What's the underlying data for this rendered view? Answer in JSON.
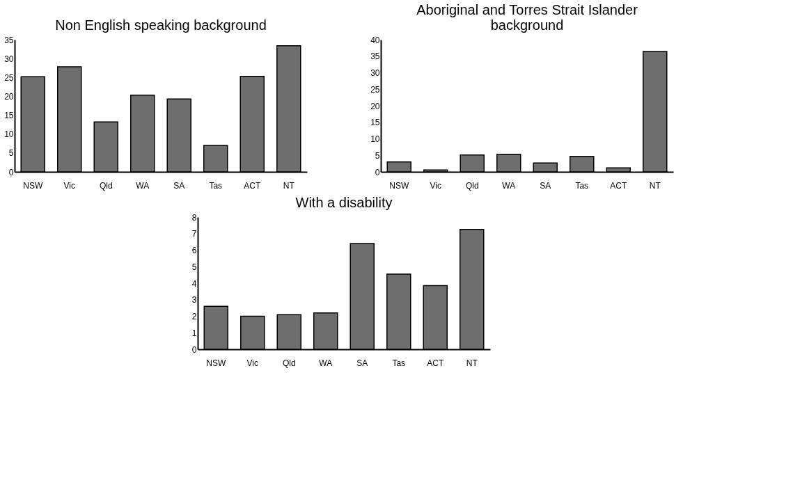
{
  "chart_data": [
    {
      "type": "bar",
      "title": "Non English speaking background",
      "categories": [
        "NSW",
        "Vic",
        "Qld",
        "WA",
        "SA",
        "Tas",
        "ACT",
        "NT"
      ],
      "values": [
        25.2,
        27.8,
        13.2,
        20.3,
        19.3,
        7.0,
        25.3,
        33.4
      ],
      "color": "#6e6e6e",
      "ylim": [
        0,
        35
      ],
      "yticks": [
        0,
        5,
        10,
        15,
        20,
        25,
        30,
        35
      ],
      "grid": false
    },
    {
      "type": "bar",
      "title": [
        "Aboriginal and Torres Strait Islander",
        "background"
      ],
      "categories": [
        "NSW",
        "Vic",
        "Qld",
        "WA",
        "SA",
        "Tas",
        "ACT",
        "NT"
      ],
      "values": [
        3.0,
        0.6,
        5.1,
        5.3,
        2.7,
        4.7,
        1.2,
        36.4
      ],
      "color": "#6e6e6e",
      "ylim": [
        0,
        40
      ],
      "yticks": [
        0,
        5,
        10,
        15,
        20,
        25,
        30,
        35,
        40
      ],
      "grid": false
    },
    {
      "type": "bar",
      "title": "With a disability",
      "categories": [
        "NSW",
        "Vic",
        "Qld",
        "WA",
        "SA",
        "Tas",
        "ACT",
        "NT"
      ],
      "values": [
        2.6,
        2.0,
        2.1,
        2.2,
        6.4,
        4.55,
        3.85,
        7.25
      ],
      "color": "#6e6e6e",
      "ylim": [
        0,
        8
      ],
      "yticks": [
        0,
        1,
        2,
        3,
        4,
        5,
        6,
        7,
        8
      ],
      "grid": false
    }
  ]
}
